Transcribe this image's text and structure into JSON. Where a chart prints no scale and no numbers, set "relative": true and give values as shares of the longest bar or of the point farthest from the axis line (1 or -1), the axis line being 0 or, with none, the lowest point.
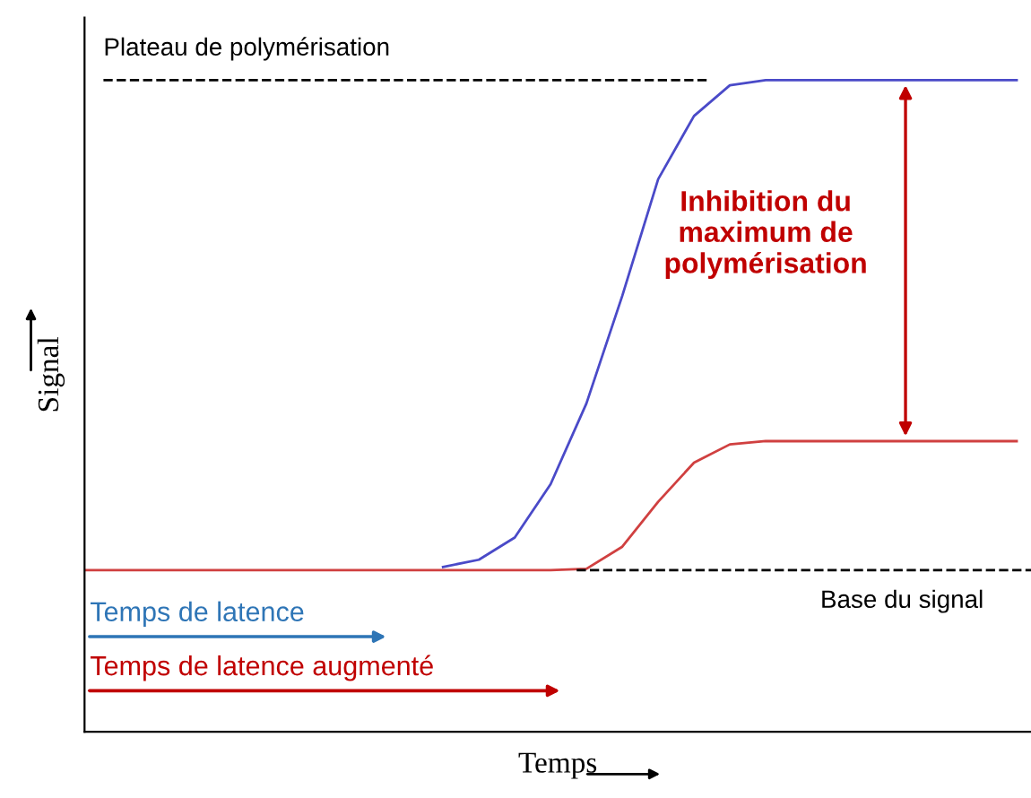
{
  "chart_data": {
    "type": "line",
    "relative": true,
    "xlabel": "Temps",
    "ylabel": "Signal",
    "categories": [
      null,
      null,
      null,
      null,
      null,
      null,
      null,
      null,
      null,
      null,
      null,
      null,
      null,
      null,
      null,
      null,
      null,
      null,
      null,
      null,
      null,
      null,
      null,
      null,
      null,
      null,
      null
    ],
    "series": [
      {
        "color": "#4a4ac8",
        "values": [
          null,
          null,
          null,
          null,
          null,
          null,
          null,
          null,
          null,
          null,
          0.253,
          0.264,
          0.298,
          0.38,
          0.504,
          0.669,
          0.848,
          0.945,
          0.992,
          1,
          1,
          1,
          1,
          1,
          1,
          1,
          1
        ]
      },
      {
        "color": "#d04040",
        "values": [
          0.248,
          0.248,
          0.248,
          0.248,
          0.248,
          0.248,
          0.248,
          0.248,
          0.248,
          0.248,
          0.248,
          0.248,
          0.248,
          0.248,
          0.25,
          0.284,
          0.353,
          0.413,
          0.441,
          0.446,
          0.446,
          0.446,
          0.446,
          0.446,
          0.446,
          0.446,
          0.446
        ]
      }
    ],
    "ref_lines": [
      {
        "axis": "y",
        "value": 1,
        "label": "Plateau de polymérisation",
        "color": "#000000",
        "line_style": "dashed"
      },
      {
        "axis": "y",
        "value": 0.248,
        "label": "Base du signal",
        "color": "#000000",
        "line_style": "dashed"
      }
    ],
    "annotations": [
      "Inhibition du maximum de polymérisation",
      "Temps de latence",
      "Temps de latence augmenté"
    ],
    "legend": false,
    "marker": "none",
    "line_style": "solid"
  }
}
